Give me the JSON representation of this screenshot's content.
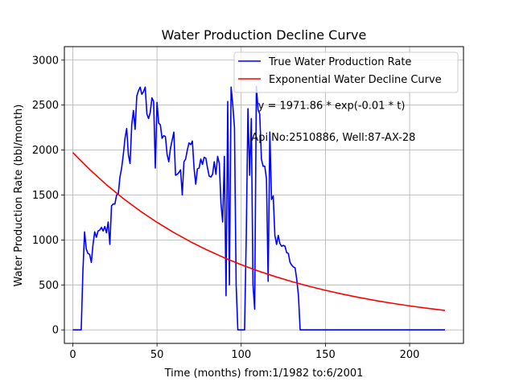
{
  "chart_data": {
    "type": "line",
    "title": "Water Production Decline Curve",
    "xlabel": "Time (months) from:1/1982 to:6/2001",
    "ylabel": "Water Production Rate (bbl/month)",
    "xlim": [
      -5,
      232
    ],
    "ylim": [
      -150,
      3150
    ],
    "xticks": [
      0,
      50,
      100,
      150,
      200
    ],
    "yticks": [
      0,
      500,
      1000,
      1500,
      2000,
      2500,
      3000
    ],
    "grid": true,
    "legend_position": "top-right",
    "annotations": [
      {
        "text": "y = 1971.86 * exp(-0.01 * t)",
        "x": 110,
        "y": 2500
      },
      {
        "text": "Api No:2510886, Well:87-AX-28",
        "x": 106,
        "y": 2150
      }
    ],
    "series": [
      {
        "name": "True Water Production Rate",
        "color": "#0000ff",
        "points": [
          [
            0,
            0
          ],
          [
            1,
            0
          ],
          [
            2,
            0
          ],
          [
            3,
            0
          ],
          [
            4,
            0
          ],
          [
            5,
            0
          ],
          [
            6,
            650
          ],
          [
            7,
            1090
          ],
          [
            8,
            900
          ],
          [
            9,
            850
          ],
          [
            10,
            840
          ],
          [
            11,
            750
          ],
          [
            12,
            950
          ],
          [
            13,
            1090
          ],
          [
            14,
            1030
          ],
          [
            15,
            1100
          ],
          [
            16,
            1110
          ],
          [
            17,
            1140
          ],
          [
            18,
            1100
          ],
          [
            19,
            1150
          ],
          [
            20,
            1080
          ],
          [
            21,
            1200
          ],
          [
            22,
            950
          ],
          [
            23,
            1380
          ],
          [
            24,
            1400
          ],
          [
            25,
            1400
          ],
          [
            26,
            1500
          ],
          [
            27,
            1510
          ],
          [
            28,
            1700
          ],
          [
            29,
            1800
          ],
          [
            30,
            1950
          ],
          [
            31,
            2130
          ],
          [
            32,
            2240
          ],
          [
            33,
            1950
          ],
          [
            34,
            1850
          ],
          [
            35,
            2280
          ],
          [
            36,
            2440
          ],
          [
            37,
            2230
          ],
          [
            38,
            2600
          ],
          [
            39,
            2660
          ],
          [
            40,
            2700
          ],
          [
            41,
            2620
          ],
          [
            42,
            2650
          ],
          [
            43,
            2700
          ],
          [
            44,
            2400
          ],
          [
            45,
            2350
          ],
          [
            46,
            2420
          ],
          [
            47,
            2580
          ],
          [
            48,
            2540
          ],
          [
            49,
            1800
          ],
          [
            50,
            2530
          ],
          [
            51,
            2300
          ],
          [
            52,
            2280
          ],
          [
            53,
            2130
          ],
          [
            54,
            2160
          ],
          [
            55,
            2150
          ],
          [
            56,
            1950
          ],
          [
            57,
            1870
          ],
          [
            58,
            2020
          ],
          [
            59,
            2110
          ],
          [
            60,
            2200
          ],
          [
            61,
            1720
          ],
          [
            62,
            1730
          ],
          [
            63,
            1750
          ],
          [
            64,
            1780
          ],
          [
            65,
            1500
          ],
          [
            66,
            1870
          ],
          [
            67,
            1900
          ],
          [
            68,
            2000
          ],
          [
            69,
            2080
          ],
          [
            70,
            2060
          ],
          [
            71,
            2100
          ],
          [
            72,
            1800
          ],
          [
            73,
            1620
          ],
          [
            74,
            1790
          ],
          [
            75,
            1800
          ],
          [
            76,
            1900
          ],
          [
            77,
            1840
          ],
          [
            78,
            1920
          ],
          [
            79,
            1910
          ],
          [
            80,
            1800
          ],
          [
            81,
            1710
          ],
          [
            82,
            1700
          ],
          [
            83,
            1730
          ],
          [
            84,
            1870
          ],
          [
            85,
            1730
          ],
          [
            86,
            1930
          ],
          [
            87,
            1850
          ],
          [
            88,
            1400
          ],
          [
            89,
            1200
          ],
          [
            90,
            1930
          ],
          [
            91,
            380
          ],
          [
            92,
            2540
          ],
          [
            93,
            500
          ],
          [
            94,
            2700
          ],
          [
            95,
            2500
          ],
          [
            96,
            2250
          ],
          [
            97,
            500
          ],
          [
            98,
            0
          ],
          [
            99,
            0
          ],
          [
            100,
            0
          ],
          [
            101,
            0
          ],
          [
            102,
            0
          ],
          [
            103,
            1040
          ],
          [
            104,
            2460
          ],
          [
            105,
            1720
          ],
          [
            106,
            2350
          ],
          [
            107,
            500
          ],
          [
            108,
            230
          ],
          [
            109,
            2710
          ],
          [
            110,
            2450
          ],
          [
            111,
            2400
          ],
          [
            112,
            1900
          ],
          [
            113,
            1820
          ],
          [
            114,
            1820
          ],
          [
            115,
            1680
          ],
          [
            116,
            540
          ],
          [
            117,
            2200
          ],
          [
            118,
            1450
          ],
          [
            119,
            1490
          ],
          [
            120,
            1050
          ],
          [
            121,
            950
          ],
          [
            122,
            1050
          ],
          [
            123,
            960
          ],
          [
            124,
            930
          ],
          [
            125,
            940
          ],
          [
            126,
            930
          ],
          [
            127,
            860
          ],
          [
            128,
            850
          ],
          [
            129,
            750
          ],
          [
            130,
            720
          ],
          [
            131,
            700
          ],
          [
            132,
            690
          ],
          [
            133,
            560
          ],
          [
            134,
            380
          ],
          [
            135,
            0
          ],
          [
            140,
            0
          ],
          [
            150,
            0
          ],
          [
            160,
            0
          ],
          [
            170,
            0
          ],
          [
            180,
            0
          ],
          [
            190,
            0
          ],
          [
            200,
            0
          ],
          [
            210,
            0
          ],
          [
            221,
            0
          ]
        ]
      },
      {
        "name": "Exponential Water Decline Curve",
        "color": "#ff0000",
        "function": "y = 1971.86 * exp(-0.01 * t)",
        "points": [
          [
            0,
            1971.86
          ],
          [
            10,
            1784.24
          ],
          [
            20,
            1614.46
          ],
          [
            30,
            1460.79
          ],
          [
            40,
            1321.81
          ],
          [
            50,
            1196.0
          ],
          [
            60,
            1082.19
          ],
          [
            70,
            979.24
          ],
          [
            80,
            886.06
          ],
          [
            90,
            801.74
          ],
          [
            100,
            725.4
          ],
          [
            110,
            656.39
          ],
          [
            120,
            593.9
          ],
          [
            130,
            537.4
          ],
          [
            140,
            486.26
          ],
          [
            150,
            440.01
          ],
          [
            160,
            398.15
          ],
          [
            170,
            360.27
          ],
          [
            180,
            325.99
          ],
          [
            190,
            294.98
          ],
          [
            200,
            266.91
          ],
          [
            210,
            241.53
          ],
          [
            221,
            215.89
          ]
        ]
      }
    ]
  }
}
